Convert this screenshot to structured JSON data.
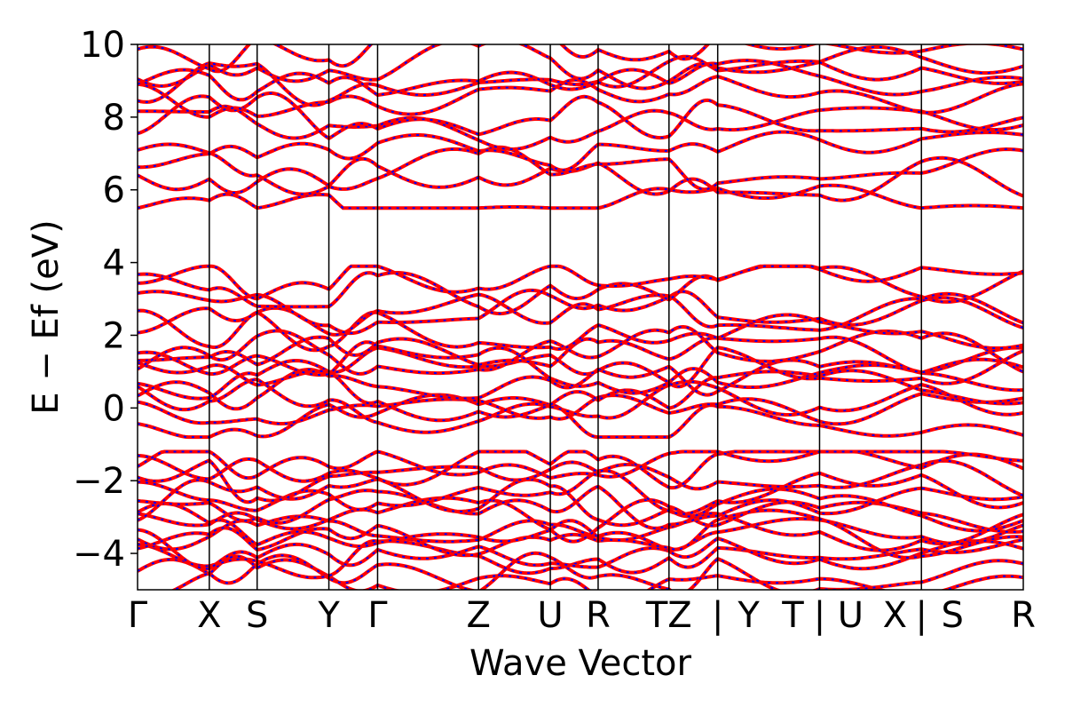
{
  "chart_data": {
    "type": "line",
    "xlabel": "Wave Vector",
    "ylabel": "E − Ef (eV)",
    "ylim": [
      -5,
      10
    ],
    "yticks": [
      -4,
      -2,
      0,
      2,
      4,
      6,
      8,
      10
    ],
    "ytick_labels": [
      "−4",
      "−2",
      "0",
      "2",
      "4",
      "6",
      "8",
      "10"
    ],
    "grid": false,
    "legend": "none",
    "x_range": [
      0,
      1
    ],
    "kpoint_positions": [
      0,
      0.081,
      0.135,
      0.216,
      0.271,
      0.385,
      0.466,
      0.52,
      0.6,
      0.655,
      0.77,
      0.885,
      1.0
    ],
    "kpoint_labels": [
      "Γ",
      "X",
      "S",
      "Y",
      "Γ",
      "Z",
      "U",
      "R",
      "TZ",
      "Y",
      "T",
      "U",
      "X",
      "S",
      "R"
    ],
    "xtick_labels": [
      {
        "label": "Γ",
        "x": 0.0
      },
      {
        "label": "X",
        "x": 0.081
      },
      {
        "label": "S",
        "x": 0.135
      },
      {
        "label": "Y",
        "x": 0.216
      },
      {
        "label": "Γ",
        "x": 0.271
      },
      {
        "label": "Z",
        "x": 0.385
      },
      {
        "label": "U",
        "x": 0.466
      },
      {
        "label": "R",
        "x": 0.52
      },
      {
        "label": "TZ",
        "x": 0.6
      },
      {
        "label": "|",
        "x": 0.655
      },
      {
        "label": "Y",
        "x": 0.69
      },
      {
        "label": "T",
        "x": 0.74
      },
      {
        "label": "|",
        "x": 0.77
      },
      {
        "label": "U",
        "x": 0.805
      },
      {
        "label": "X",
        "x": 0.855
      },
      {
        "label": "|",
        "x": 0.885
      },
      {
        "label": "S",
        "x": 0.92
      },
      {
        "label": "R",
        "x": 1.0
      }
    ],
    "segment_boundaries": [
      0,
      0.081,
      0.135,
      0.216,
      0.271,
      0.385,
      0.466,
      0.52,
      0.6,
      0.655,
      0.77,
      0.885,
      1.0
    ],
    "series_colors": {
      "primary": "#ff0000",
      "overlay": "#0000ff"
    },
    "band_count_estimate": 40,
    "series": [
      {
        "color": "#ff0000",
        "style": "solid"
      },
      {
        "color": "#0000ff",
        "style": "dotted"
      }
    ]
  }
}
